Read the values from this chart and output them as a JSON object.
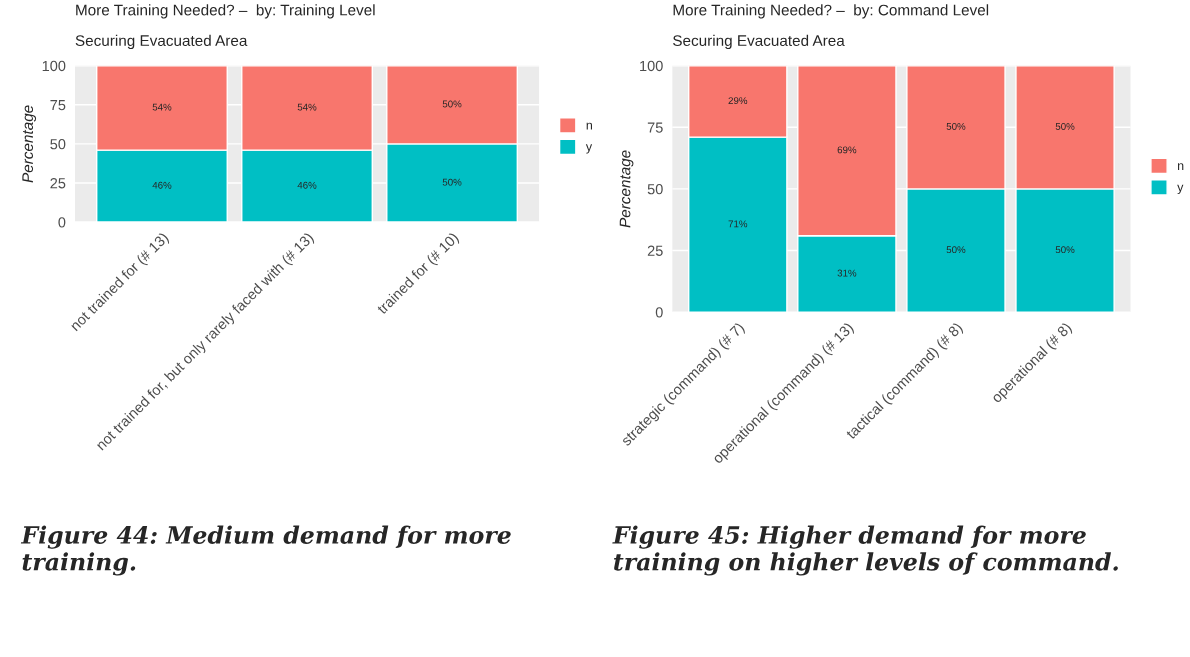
{
  "chart_data": [
    {
      "type": "bar",
      "title": "More Training Needed? –  by: Training Level",
      "subtitle": "Securing Evacuated Area",
      "ylabel": "Percentage",
      "stacked": true,
      "legend": "right",
      "grid": true,
      "ylim": [
        0,
        100
      ],
      "yticks": [
        0,
        25,
        50,
        75,
        100
      ],
      "categories": [
        "not trained for (# 13)",
        "not trained for, but only rarely faced with (# 13)",
        "trained for (# 10)"
      ],
      "series": [
        {
          "name": "y",
          "color": "#00bfc4",
          "values": [
            46,
            46,
            50
          ],
          "value_labels": [
            "46%",
            "46%",
            "50%"
          ]
        },
        {
          "name": "n",
          "color": "#f8766d",
          "values": [
            54,
            54,
            50
          ],
          "value_labels": [
            "54%",
            "54%",
            "50%"
          ]
        }
      ],
      "annotations": [
        "Figure 44: Medium demand for more training."
      ]
    },
    {
      "type": "bar",
      "title": "More Training Needed? –  by: Command Level",
      "subtitle": "Securing Evacuated Area",
      "ylabel": "Percentage",
      "stacked": true,
      "legend": "right",
      "grid": true,
      "ylim": [
        0,
        100
      ],
      "yticks": [
        0,
        25,
        50,
        75,
        100
      ],
      "categories": [
        "strategic (command) (# 7)",
        "operational (command) (# 13)",
        "tactical (command) (# 8)",
        "operational (# 8)"
      ],
      "series": [
        {
          "name": "y",
          "color": "#00bfc4",
          "values": [
            71,
            31,
            50,
            50
          ],
          "value_labels": [
            "71%",
            "31%",
            "50%",
            "50%"
          ]
        },
        {
          "name": "n",
          "color": "#f8766d",
          "values": [
            29,
            69,
            50,
            50
          ],
          "value_labels": [
            "29%",
            "69%",
            "50%",
            "50%"
          ]
        }
      ],
      "annotations": [
        "Figure 45: Higher demand for more training on higher levels of command."
      ]
    }
  ]
}
